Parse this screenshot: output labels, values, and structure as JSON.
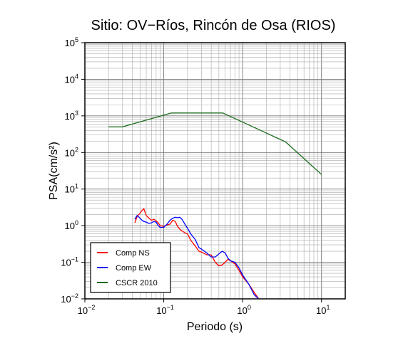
{
  "chart_data": {
    "type": "line",
    "title": "Sitio: OV−Ríos, Rincón de Osa (RIOS)",
    "xlabel": "Periodo (s)",
    "ylabel": "PSA(cm/s²)",
    "x_scale": "log",
    "y_scale": "log",
    "xlim": [
      0.01,
      20
    ],
    "ylim": [
      0.01,
      100000
    ],
    "grid": true,
    "legend_position": "bottom-left",
    "x_ticks": [
      {
        "value": 0.01,
        "base": "10",
        "exp": "−2"
      },
      {
        "value": 0.1,
        "base": "10",
        "exp": "−1"
      },
      {
        "value": 1,
        "base": "10",
        "exp": "0"
      },
      {
        "value": 10,
        "base": "10",
        "exp": "1"
      }
    ],
    "y_ticks": [
      {
        "value": 0.01,
        "base": "10",
        "exp": "−2"
      },
      {
        "value": 0.1,
        "base": "10",
        "exp": "−1"
      },
      {
        "value": 1,
        "base": "10",
        "exp": "0"
      },
      {
        "value": 10,
        "base": "10",
        "exp": "1"
      },
      {
        "value": 100,
        "base": "10",
        "exp": "2"
      },
      {
        "value": 1000,
        "base": "10",
        "exp": "3"
      },
      {
        "value": 10000,
        "base": "10",
        "exp": "4"
      },
      {
        "value": 100000,
        "base": "10",
        "exp": "5"
      }
    ],
    "series": [
      {
        "name": "Comp NS",
        "color": "#ff0000",
        "x": [
          0.043,
          0.046,
          0.05,
          0.053,
          0.056,
          0.06,
          0.065,
          0.07,
          0.075,
          0.08,
          0.085,
          0.09,
          0.1,
          0.11,
          0.12,
          0.13,
          0.14,
          0.15,
          0.16,
          0.17,
          0.19,
          0.2,
          0.22,
          0.25,
          0.28,
          0.3,
          0.35,
          0.4,
          0.45,
          0.5,
          0.55,
          0.6,
          0.65,
          0.7,
          0.8,
          0.9,
          1.0,
          1.2,
          1.4,
          1.6
        ],
        "y": [
          1.2,
          1.8,
          2.2,
          2.6,
          2.9,
          1.9,
          1.6,
          1.4,
          1.5,
          1.35,
          1.2,
          1.0,
          0.95,
          1.05,
          1.1,
          1.4,
          1.3,
          0.95,
          0.8,
          0.72,
          0.62,
          0.6,
          0.4,
          0.28,
          0.2,
          0.19,
          0.16,
          0.16,
          0.1,
          0.08,
          0.085,
          0.1,
          0.12,
          0.11,
          0.09,
          0.06,
          0.04,
          0.025,
          0.015,
          0.01
        ]
      },
      {
        "name": "Comp EW",
        "color": "#0000ff",
        "x": [
          0.043,
          0.046,
          0.05,
          0.053,
          0.056,
          0.06,
          0.065,
          0.07,
          0.075,
          0.08,
          0.085,
          0.09,
          0.1,
          0.11,
          0.12,
          0.13,
          0.14,
          0.15,
          0.16,
          0.17,
          0.19,
          0.2,
          0.22,
          0.25,
          0.28,
          0.3,
          0.35,
          0.4,
          0.45,
          0.5,
          0.55,
          0.6,
          0.65,
          0.7,
          0.8,
          0.9,
          1.0,
          1.2,
          1.4,
          1.6
        ],
        "y": [
          1.5,
          1.9,
          1.6,
          1.4,
          1.3,
          1.25,
          1.15,
          1.2,
          1.3,
          1.25,
          1.0,
          0.9,
          0.9,
          1.1,
          1.4,
          1.6,
          1.7,
          1.65,
          1.7,
          1.5,
          1.0,
          0.85,
          0.6,
          0.42,
          0.25,
          0.23,
          0.18,
          0.14,
          0.14,
          0.17,
          0.2,
          0.18,
          0.13,
          0.11,
          0.1,
          0.07,
          0.045,
          0.025,
          0.013,
          0.01
        ]
      },
      {
        "name": "CSCR 2010",
        "color": "#1a6b1a",
        "x": [
          0.02,
          0.03,
          0.125,
          0.5625,
          3.5,
          10
        ],
        "y": [
          500,
          500,
          1200,
          1200,
          195,
          25
        ]
      }
    ]
  }
}
